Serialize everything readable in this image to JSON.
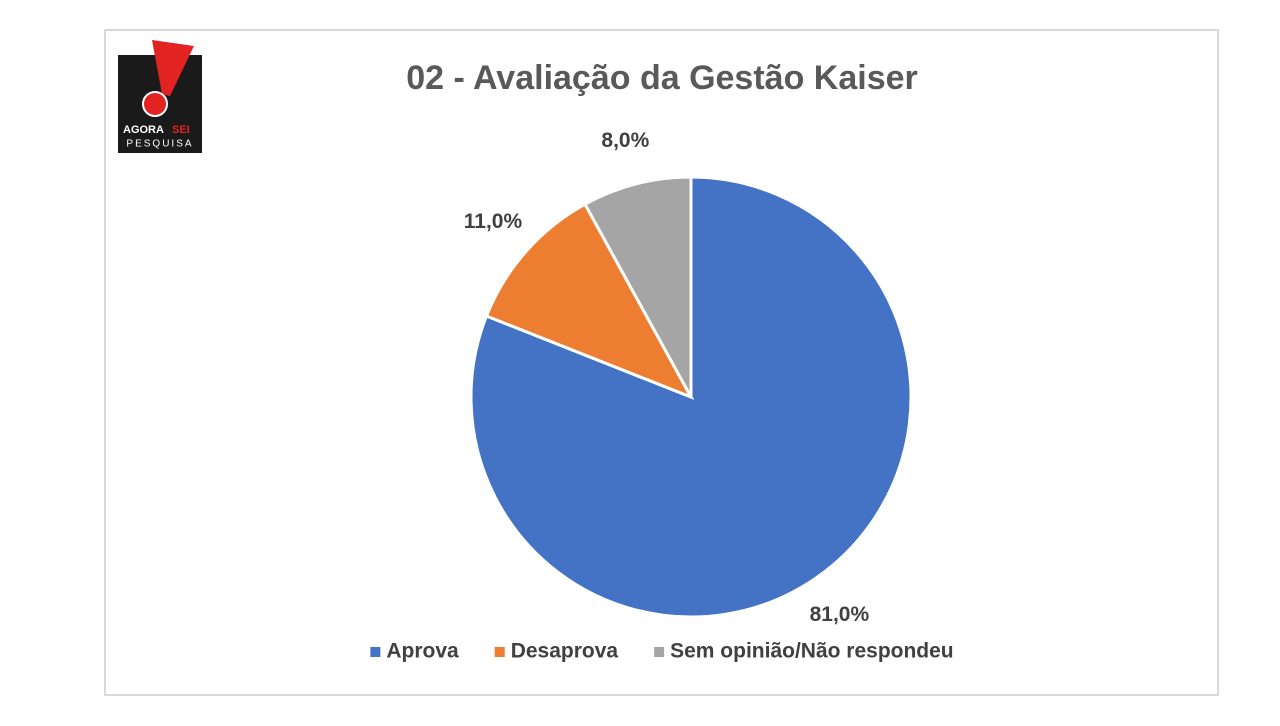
{
  "logo": {
    "word1": "AGORA",
    "word2": "SEI",
    "word3": "PESQUISA"
  },
  "chart_data": {
    "type": "pie",
    "title": "02 - Avaliação da Gestão Kaiser",
    "categories": [
      "Aprova",
      "Desaprova",
      "Sem opinião/Não respondeu"
    ],
    "values": [
      81,
      11,
      8
    ],
    "value_labels": [
      "81,0%",
      "11,0%",
      "8,0%"
    ],
    "colors": [
      "#4472c4",
      "#ed7d31",
      "#a5a5a5"
    ],
    "legend": "bottom"
  }
}
